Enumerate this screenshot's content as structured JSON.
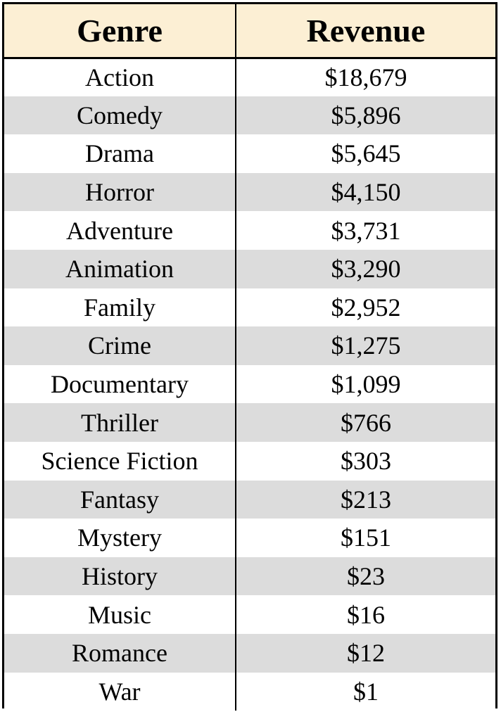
{
  "table": {
    "headers": {
      "genre": "Genre",
      "revenue": "Revenue"
    },
    "rows": [
      {
        "genre": "Action",
        "revenue": "$18,679"
      },
      {
        "genre": "Comedy",
        "revenue": "$5,896"
      },
      {
        "genre": "Drama",
        "revenue": "$5,645"
      },
      {
        "genre": "Horror",
        "revenue": "$4,150"
      },
      {
        "genre": "Adventure",
        "revenue": "$3,731"
      },
      {
        "genre": "Animation",
        "revenue": "$3,290"
      },
      {
        "genre": "Family",
        "revenue": "$2,952"
      },
      {
        "genre": "Crime",
        "revenue": "$1,275"
      },
      {
        "genre": "Documentary",
        "revenue": "$1,099"
      },
      {
        "genre": "Thriller",
        "revenue": "$766"
      },
      {
        "genre": "Science Fiction",
        "revenue": "$303"
      },
      {
        "genre": "Fantasy",
        "revenue": "$213"
      },
      {
        "genre": "Mystery",
        "revenue": "$151"
      },
      {
        "genre": "History",
        "revenue": "$23"
      },
      {
        "genre": "Music",
        "revenue": "$16"
      },
      {
        "genre": "Romance",
        "revenue": "$12"
      },
      {
        "genre": "War",
        "revenue": "$1"
      }
    ]
  },
  "colors": {
    "header_background": "#fcefd4",
    "stripe_background": "#dcdcdc",
    "border": "#000000"
  }
}
